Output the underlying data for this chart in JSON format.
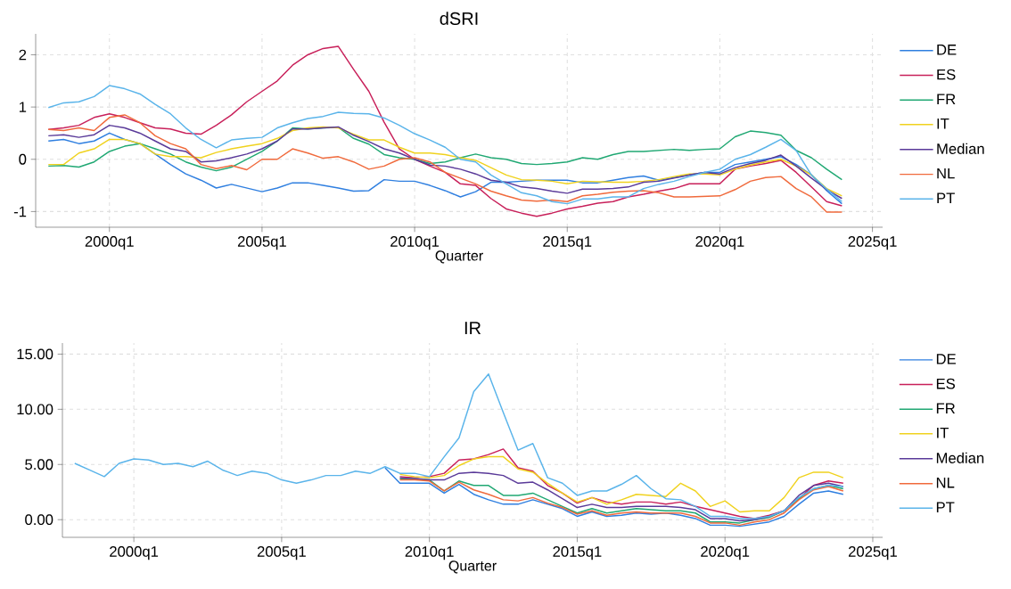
{
  "chart_data": [
    {
      "type": "line",
      "title": "dSRI",
      "xlabel": "Quarter",
      "x": [
        "1998-01",
        "1998-07",
        "1999-01",
        "1999-07",
        "2000-01",
        "2000-07",
        "2001-01",
        "2001-07",
        "2002-01",
        "2002-07",
        "2003-01",
        "2003-07",
        "2004-01",
        "2004-07",
        "2005-01",
        "2005-07",
        "2006-01",
        "2006-07",
        "2007-01",
        "2007-07",
        "2008-01",
        "2008-07",
        "2009-01",
        "2009-07",
        "2010-01",
        "2010-07",
        "2011-01",
        "2011-07",
        "2012-01",
        "2012-07",
        "2013-01",
        "2013-07",
        "2014-01",
        "2014-07",
        "2015-01",
        "2015-07",
        "2016-01",
        "2016-07",
        "2017-01",
        "2017-07",
        "2018-01",
        "2018-07",
        "2019-01",
        "2019-07",
        "2020-01",
        "2020-07",
        "2021-01",
        "2021-07",
        "2022-01",
        "2022-07",
        "2023-01",
        "2023-07",
        "2024-01"
      ],
      "series": [
        {
          "name": "DE",
          "color": "#2f7fe0",
          "values": [
            0.35,
            0.38,
            0.3,
            0.35,
            0.5,
            0.38,
            0.3,
            0.1,
            -0.1,
            -0.28,
            -0.4,
            -0.55,
            -0.48,
            -0.55,
            -0.62,
            -0.55,
            -0.45,
            -0.45,
            -0.5,
            -0.55,
            -0.61,
            -0.6,
            -0.39,
            -0.42,
            -0.42,
            -0.5,
            -0.6,
            -0.72,
            -0.62,
            -0.44,
            -0.44,
            -0.42,
            -0.4,
            -0.4,
            -0.4,
            -0.45,
            -0.45,
            -0.4,
            -0.35,
            -0.32,
            -0.4,
            -0.35,
            -0.3,
            -0.25,
            -0.25,
            -0.1,
            -0.05,
            0.0,
            0.05,
            -0.1,
            -0.3,
            -0.6,
            -0.85
          ]
        },
        {
          "name": "ES",
          "color": "#c8205a",
          "values": [
            0.57,
            0.6,
            0.65,
            0.8,
            0.87,
            0.8,
            0.7,
            0.6,
            0.58,
            0.5,
            0.48,
            0.65,
            0.85,
            1.1,
            1.3,
            1.5,
            1.8,
            2.0,
            2.12,
            2.16,
            1.72,
            1.3,
            0.71,
            0.2,
            0.0,
            -0.13,
            -0.25,
            -0.47,
            -0.5,
            -0.75,
            -0.95,
            -1.03,
            -1.09,
            -1.03,
            -0.95,
            -0.9,
            -0.84,
            -0.81,
            -0.72,
            -0.67,
            -0.61,
            -0.56,
            -0.47,
            -0.47,
            -0.47,
            -0.19,
            -0.13,
            -0.08,
            -0.02,
            -0.25,
            -0.53,
            -0.81,
            -0.89
          ]
        },
        {
          "name": "FR",
          "color": "#20a873",
          "values": [
            -0.13,
            -0.12,
            -0.15,
            -0.05,
            0.15,
            0.25,
            0.3,
            0.2,
            0.1,
            -0.05,
            -0.15,
            -0.22,
            -0.15,
            0.0,
            0.15,
            0.35,
            0.6,
            0.58,
            0.6,
            0.61,
            0.4,
            0.29,
            0.09,
            0.03,
            0.0,
            -0.08,
            -0.05,
            0.03,
            0.1,
            0.03,
            0.0,
            -0.08,
            -0.1,
            -0.08,
            -0.05,
            0.03,
            0.0,
            0.09,
            0.15,
            0.15,
            0.17,
            0.19,
            0.17,
            0.19,
            0.2,
            0.43,
            0.54,
            0.51,
            0.46,
            0.17,
            0.03,
            -0.19,
            -0.39
          ]
        },
        {
          "name": "IT",
          "color": "#f0d21e",
          "values": [
            -0.1,
            -0.1,
            0.12,
            0.2,
            0.38,
            0.38,
            0.3,
            0.1,
            0.05,
            0.05,
            0.03,
            0.13,
            0.2,
            0.25,
            0.3,
            0.4,
            0.55,
            0.6,
            0.62,
            0.6,
            0.48,
            0.37,
            0.37,
            0.23,
            0.12,
            0.12,
            0.09,
            0.03,
            -0.02,
            -0.16,
            -0.3,
            -0.39,
            -0.4,
            -0.42,
            -0.47,
            -0.42,
            -0.43,
            -0.44,
            -0.44,
            -0.42,
            -0.39,
            -0.33,
            -0.28,
            -0.28,
            -0.3,
            -0.19,
            -0.11,
            -0.05,
            0.0,
            -0.13,
            -0.3,
            -0.56,
            -0.7
          ]
        },
        {
          "name": "Median",
          "color": "#5a3a99",
          "values": [
            0.45,
            0.47,
            0.42,
            0.47,
            0.65,
            0.6,
            0.5,
            0.35,
            0.2,
            0.15,
            -0.05,
            -0.03,
            0.03,
            0.1,
            0.2,
            0.35,
            0.58,
            0.58,
            0.6,
            0.62,
            0.46,
            0.34,
            0.2,
            0.12,
            0.0,
            -0.11,
            -0.13,
            -0.19,
            -0.28,
            -0.4,
            -0.44,
            -0.53,
            -0.56,
            -0.61,
            -0.65,
            -0.57,
            -0.57,
            -0.56,
            -0.53,
            -0.44,
            -0.42,
            -0.36,
            -0.3,
            -0.25,
            -0.28,
            -0.16,
            -0.08,
            -0.02,
            0.08,
            -0.13,
            -0.36,
            -0.58,
            -0.75
          ]
        },
        {
          "name": "NL",
          "color": "#f06a3c",
          "values": [
            0.57,
            0.55,
            0.6,
            0.55,
            0.8,
            0.85,
            0.7,
            0.45,
            0.3,
            0.2,
            -0.1,
            -0.18,
            -0.12,
            -0.2,
            0.0,
            0.0,
            0.2,
            0.12,
            0.02,
            0.05,
            -0.05,
            -0.19,
            -0.13,
            0.0,
            0.03,
            -0.05,
            -0.25,
            -0.36,
            -0.47,
            -0.61,
            -0.7,
            -0.78,
            -0.8,
            -0.78,
            -0.81,
            -0.7,
            -0.67,
            -0.63,
            -0.61,
            -0.6,
            -0.64,
            -0.72,
            -0.72,
            -0.71,
            -0.7,
            -0.58,
            -0.42,
            -0.35,
            -0.33,
            -0.56,
            -0.72,
            -1.01,
            -1.01
          ]
        },
        {
          "name": "PT",
          "color": "#5ab4ea",
          "values": [
            0.99,
            1.08,
            1.1,
            1.2,
            1.41,
            1.35,
            1.25,
            1.05,
            0.87,
            0.6,
            0.38,
            0.22,
            0.37,
            0.4,
            0.42,
            0.6,
            0.7,
            0.78,
            0.82,
            0.9,
            0.88,
            0.87,
            0.79,
            0.65,
            0.49,
            0.37,
            0.23,
            0.0,
            -0.05,
            -0.3,
            -0.47,
            -0.64,
            -0.7,
            -0.81,
            -0.85,
            -0.76,
            -0.76,
            -0.72,
            -0.72,
            -0.56,
            -0.48,
            -0.42,
            -0.33,
            -0.25,
            -0.19,
            0.0,
            0.09,
            0.23,
            0.38,
            0.17,
            -0.3,
            -0.57,
            -0.81
          ]
        }
      ],
      "xlim": [
        "1997-08",
        "2025-05"
      ],
      "ylim": [
        -1.3,
        2.4
      ],
      "xticks": [
        {
          "value": "2000-01",
          "label": "2000q1"
        },
        {
          "value": "2005-01",
          "label": "2005q1"
        },
        {
          "value": "2010-01",
          "label": "2010q1"
        },
        {
          "value": "2015-01",
          "label": "2015q1"
        },
        {
          "value": "2020-01",
          "label": "2020q1"
        },
        {
          "value": "2025-01",
          "label": "2025q1"
        }
      ],
      "yticks": [
        -1,
        0,
        1,
        2
      ],
      "grid": true,
      "legend": "right",
      "marker": "none"
    },
    {
      "type": "line",
      "title": "IR",
      "xlabel": "Quarter",
      "x": [
        "1998-01",
        "1998-07",
        "1999-01",
        "1999-07",
        "2000-01",
        "2000-07",
        "2001-01",
        "2001-07",
        "2002-01",
        "2002-07",
        "2003-01",
        "2003-07",
        "2004-01",
        "2004-07",
        "2005-01",
        "2005-07",
        "2006-01",
        "2006-07",
        "2007-01",
        "2007-07",
        "2008-01",
        "2008-07",
        "2009-01",
        "2009-07",
        "2010-01",
        "2010-07",
        "2011-01",
        "2011-07",
        "2012-01",
        "2012-07",
        "2013-01",
        "2013-07",
        "2014-01",
        "2014-07",
        "2015-01",
        "2015-07",
        "2016-01",
        "2016-07",
        "2017-01",
        "2017-07",
        "2018-01",
        "2018-07",
        "2019-01",
        "2019-07",
        "2020-01",
        "2020-07",
        "2021-01",
        "2021-07",
        "2022-01",
        "2022-07",
        "2023-01",
        "2023-07",
        "2024-01"
      ],
      "series": [
        {
          "name": "DE",
          "color": "#2f7fe0",
          "values": [
            null,
            null,
            null,
            null,
            null,
            null,
            null,
            null,
            null,
            null,
            null,
            null,
            null,
            null,
            null,
            null,
            null,
            null,
            null,
            null,
            null,
            4.7,
            3.3,
            3.3,
            3.3,
            2.4,
            3.2,
            2.3,
            1.8,
            1.4,
            1.4,
            1.8,
            1.4,
            1.0,
            0.3,
            0.7,
            0.3,
            0.4,
            0.6,
            0.5,
            0.6,
            0.4,
            0.1,
            -0.5,
            -0.5,
            -0.6,
            -0.4,
            -0.2,
            0.3,
            1.4,
            2.4,
            2.6,
            2.3
          ]
        },
        {
          "name": "ES",
          "color": "#c8205a",
          "values": [
            null,
            null,
            null,
            null,
            null,
            null,
            null,
            null,
            null,
            null,
            null,
            null,
            null,
            null,
            null,
            null,
            null,
            null,
            null,
            null,
            null,
            null,
            3.9,
            3.8,
            3.9,
            4.2,
            5.4,
            5.5,
            5.9,
            6.4,
            4.7,
            4.4,
            3.1,
            2.4,
            1.5,
            2.0,
            1.6,
            1.4,
            1.6,
            1.6,
            1.4,
            1.6,
            1.2,
            0.9,
            0.6,
            0.3,
            0.1,
            0.4,
            0.8,
            1.9,
            3.1,
            3.5,
            3.3
          ]
        },
        {
          "name": "FR",
          "color": "#20a873",
          "values": [
            null,
            null,
            null,
            null,
            null,
            null,
            null,
            null,
            null,
            null,
            null,
            null,
            null,
            null,
            null,
            null,
            null,
            null,
            null,
            null,
            null,
            null,
            3.7,
            3.7,
            3.6,
            2.6,
            3.5,
            3.1,
            3.1,
            2.2,
            2.2,
            2.4,
            1.8,
            1.2,
            0.6,
            1.0,
            0.6,
            0.8,
            1.0,
            0.9,
            0.8,
            0.8,
            0.6,
            -0.2,
            -0.2,
            -0.3,
            0.0,
            0.2,
            0.8,
            1.9,
            2.8,
            3.1,
            2.8
          ]
        },
        {
          "name": "IT",
          "color": "#f0d21e",
          "values": [
            null,
            null,
            null,
            null,
            null,
            null,
            null,
            null,
            null,
            null,
            null,
            null,
            null,
            null,
            null,
            null,
            null,
            null,
            null,
            null,
            null,
            null,
            4.1,
            3.9,
            3.8,
            4.0,
            4.9,
            5.5,
            5.7,
            5.7,
            4.6,
            4.3,
            3.3,
            2.4,
            1.6,
            2.0,
            1.4,
            1.8,
            2.3,
            2.2,
            2.1,
            3.3,
            2.6,
            1.2,
            1.7,
            0.7,
            0.8,
            0.8,
            2.0,
            3.8,
            4.3,
            4.3,
            3.8
          ]
        },
        {
          "name": "Median",
          "color": "#5a3a99",
          "values": [
            null,
            null,
            null,
            null,
            null,
            null,
            null,
            null,
            null,
            null,
            null,
            null,
            null,
            null,
            null,
            null,
            null,
            null,
            null,
            null,
            null,
            null,
            3.8,
            3.7,
            3.6,
            3.6,
            4.2,
            4.3,
            4.2,
            4.0,
            3.3,
            3.4,
            2.7,
            1.9,
            1.1,
            1.4,
            1.1,
            1.1,
            1.2,
            1.2,
            1.2,
            1.1,
            0.9,
            0.1,
            0.1,
            -0.1,
            0.0,
            0.3,
            0.8,
            2.2,
            3.1,
            3.3,
            3.0
          ]
        },
        {
          "name": "NL",
          "color": "#f06a3c",
          "values": [
            null,
            null,
            null,
            null,
            null,
            null,
            null,
            null,
            null,
            null,
            null,
            null,
            null,
            null,
            null,
            null,
            null,
            null,
            null,
            null,
            null,
            null,
            3.6,
            3.6,
            3.5,
            2.6,
            3.4,
            2.7,
            2.3,
            1.8,
            1.7,
            2.0,
            1.5,
            1.1,
            0.5,
            0.8,
            0.4,
            0.6,
            0.7,
            0.6,
            0.6,
            0.6,
            0.3,
            -0.3,
            -0.3,
            -0.5,
            -0.2,
            0.0,
            0.6,
            1.8,
            2.7,
            3.0,
            2.6
          ]
        },
        {
          "name": "PT",
          "color": "#5ab4ea",
          "values": [
            5.1,
            4.5,
            3.9,
            5.1,
            5.5,
            5.4,
            5.0,
            5.1,
            4.8,
            5.3,
            4.5,
            4.0,
            4.4,
            4.2,
            3.6,
            3.3,
            3.6,
            4.0,
            4.0,
            4.4,
            4.2,
            4.8,
            4.2,
            4.2,
            3.9,
            5.7,
            7.4,
            11.6,
            13.2,
            9.7,
            6.3,
            6.9,
            3.8,
            3.3,
            2.2,
            2.6,
            2.6,
            3.2,
            4.0,
            2.8,
            1.9,
            1.8,
            1.2,
            0.3,
            0.3,
            0.1,
            0.1,
            0.3,
            0.8,
            2.0,
            2.8,
            3.1,
            3.0
          ]
        }
      ],
      "xlim": [
        "1997-08",
        "2025-05"
      ],
      "ylim": [
        -1.6,
        16
      ],
      "xticks": [
        {
          "value": "2000-01",
          "label": "2000q1"
        },
        {
          "value": "2005-01",
          "label": "2005q1"
        },
        {
          "value": "2010-01",
          "label": "2010q1"
        },
        {
          "value": "2015-01",
          "label": "2015q1"
        },
        {
          "value": "2020-01",
          "label": "2020q1"
        },
        {
          "value": "2025-01",
          "label": "2025q1"
        }
      ],
      "yticks": [
        {
          "value": 0,
          "label": "0.00"
        },
        {
          "value": 5,
          "label": "5.00"
        },
        {
          "value": 10,
          "label": "10.00"
        },
        {
          "value": 15,
          "label": "15.00"
        }
      ],
      "grid": true,
      "legend": "right",
      "marker": "none"
    }
  ]
}
